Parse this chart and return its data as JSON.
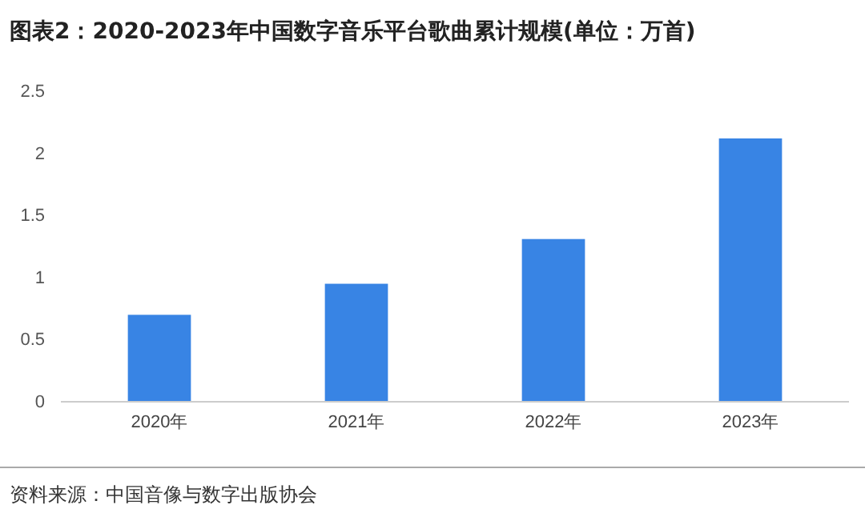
{
  "chart_data": {
    "type": "bar",
    "title": "图表2：2020-2023年中国数字音乐平台歌曲累计规模(单位：万首)",
    "categories": [
      "2020年",
      "2021年",
      "2022年",
      "2023年"
    ],
    "values": [
      0.7,
      0.95,
      1.31,
      2.12
    ],
    "color": "#3884e4",
    "ylim": [
      0,
      2.5
    ],
    "yticks": [
      0,
      0.5,
      1,
      1.5,
      2,
      2.5
    ],
    "grid": false,
    "annotations": [
      "资料来源：中国音像与数字出版协会"
    ]
  }
}
